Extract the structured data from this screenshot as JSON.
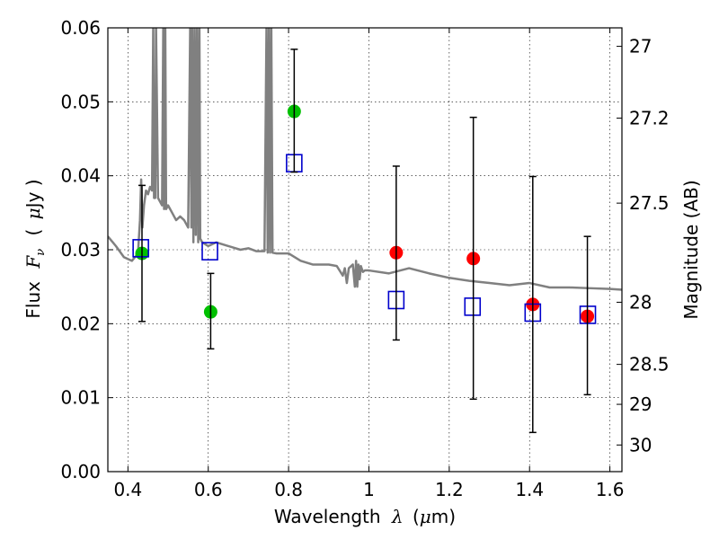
{
  "chart_data": {
    "type": "scatter",
    "title": "",
    "xlabel": {
      "prefix": "Wavelength",
      "symbol": "λ",
      "unit_open": "(",
      "unit_mu": "μ",
      "unit_rest": "m)"
    },
    "ylabel": {
      "prefix": "Flux",
      "symbol": "F",
      "symbol_sub": "ν",
      "unit_open": "(",
      "unit_mu": "μ",
      "unit_rest": "Jy )"
    },
    "y2label": "Magnitude (AB)",
    "xlim": [
      0.35,
      1.63
    ],
    "ylim": [
      0.0,
      0.06
    ],
    "grid": true,
    "grid_style": "dotted",
    "x_ticks": [
      0.4,
      0.6,
      0.8,
      1.0,
      1.2,
      1.4,
      1.6
    ],
    "x_tick_labels": [
      "0.4",
      "0.6",
      "0.8",
      "1",
      "1.2",
      "1.4",
      "1.6"
    ],
    "y_ticks": [
      0.0,
      0.01,
      0.02,
      0.03,
      0.04,
      0.05,
      0.06
    ],
    "y_tick_labels": [
      "0.00",
      "0.01",
      "0.02",
      "0.03",
      "0.04",
      "0.05",
      "0.06"
    ],
    "y2_ticks": [
      {
        "label": "27",
        "flux": 0.0575
      },
      {
        "label": "27.2",
        "flux": 0.0478
      },
      {
        "label": "27.5",
        "flux": 0.0363
      },
      {
        "label": "28",
        "flux": 0.0229
      },
      {
        "label": "28.5",
        "flux": 0.0145
      },
      {
        "label": "29",
        "flux": 0.0091
      },
      {
        "label": "30",
        "flux": 0.0036
      }
    ],
    "colors": {
      "model": "#808080",
      "detection": "#00c000",
      "upper_limit": "#ff0000",
      "model_photometry": "#0000cc",
      "errorbar": "#000000"
    },
    "series": [
      {
        "kind": "line",
        "x": [
          0.35,
          0.37,
          0.39,
          0.41,
          0.425,
          0.43,
          0.433,
          0.436,
          0.44,
          0.445,
          0.45,
          0.455,
          0.46,
          0.463,
          0.465,
          0.468,
          0.47,
          0.475,
          0.48,
          0.485,
          0.488,
          0.49,
          0.493,
          0.495,
          0.5,
          0.51,
          0.52,
          0.53,
          0.54,
          0.55,
          0.555,
          0.558,
          0.56,
          0.563,
          0.566,
          0.569,
          0.572,
          0.575,
          0.578,
          0.58,
          0.585,
          0.6,
          0.62,
          0.65,
          0.68,
          0.7,
          0.72,
          0.74,
          0.745,
          0.748,
          0.751,
          0.754,
          0.757,
          0.76,
          0.77,
          0.8,
          0.83,
          0.86,
          0.9,
          0.92,
          0.935,
          0.94,
          0.945,
          0.95,
          0.96,
          0.965,
          0.968,
          0.971,
          0.974,
          0.977,
          0.98,
          0.985,
          0.99,
          1.0,
          1.05,
          1.1,
          1.15,
          1.2,
          1.25,
          1.3,
          1.35,
          1.4,
          1.45,
          1.5,
          1.55,
          1.6,
          1.63
        ],
        "y": [
          0.0318,
          0.0305,
          0.029,
          0.0285,
          0.0295,
          0.034,
          0.0395,
          0.033,
          0.036,
          0.038,
          0.0375,
          0.0385,
          0.038,
          0.06,
          0.037,
          0.037,
          0.06,
          0.037,
          0.0365,
          0.036,
          0.06,
          0.0355,
          0.06,
          0.0355,
          0.036,
          0.035,
          0.034,
          0.0345,
          0.034,
          0.033,
          0.06,
          0.033,
          0.06,
          0.031,
          0.06,
          0.032,
          0.06,
          0.031,
          0.06,
          0.0315,
          0.031,
          0.0305,
          0.031,
          0.0305,
          0.03,
          0.0302,
          0.0298,
          0.0298,
          0.06,
          0.0296,
          0.06,
          0.0296,
          0.06,
          0.0296,
          0.0295,
          0.0295,
          0.0285,
          0.028,
          0.028,
          0.0278,
          0.0265,
          0.0275,
          0.0255,
          0.0275,
          0.028,
          0.025,
          0.0285,
          0.025,
          0.028,
          0.026,
          0.0278,
          0.027,
          0.0272,
          0.0272,
          0.0268,
          0.0275,
          0.0268,
          0.0262,
          0.0258,
          0.0255,
          0.0252,
          0.0255,
          0.0249,
          0.0249,
          0.0248,
          0.0247,
          0.0246
        ]
      },
      {
        "kind": "points",
        "marker": "circle",
        "color_key": "detection",
        "x": [
          0.435,
          0.606,
          0.814
        ],
        "y": [
          0.0295,
          0.0216,
          0.0487
        ]
      },
      {
        "kind": "points",
        "marker": "circle",
        "color_key": "upper_limit",
        "x": [
          1.068,
          1.26,
          1.408,
          1.544
        ],
        "y": [
          0.0296,
          0.0288,
          0.0226,
          0.021
        ]
      },
      {
        "kind": "points",
        "marker": "square",
        "color_key": "model_photometry",
        "x": [
          0.432,
          0.604,
          0.814,
          1.068,
          1.258,
          1.408,
          1.545
        ],
        "y": [
          0.0302,
          0.0298,
          0.0417,
          0.0232,
          0.0223,
          0.0215,
          0.0212
        ]
      },
      {
        "kind": "errorbars",
        "color_key": "errorbar",
        "x": [
          0.435,
          0.606,
          0.814,
          1.068,
          1.26,
          1.408,
          1.544
        ],
        "low": [
          0.0203,
          0.0166,
          0.0405,
          0.0178,
          0.0098,
          0.0053,
          0.0104
        ],
        "high": [
          0.0387,
          0.0268,
          0.0571,
          0.0413,
          0.0479,
          0.0399,
          0.0318
        ]
      }
    ]
  }
}
